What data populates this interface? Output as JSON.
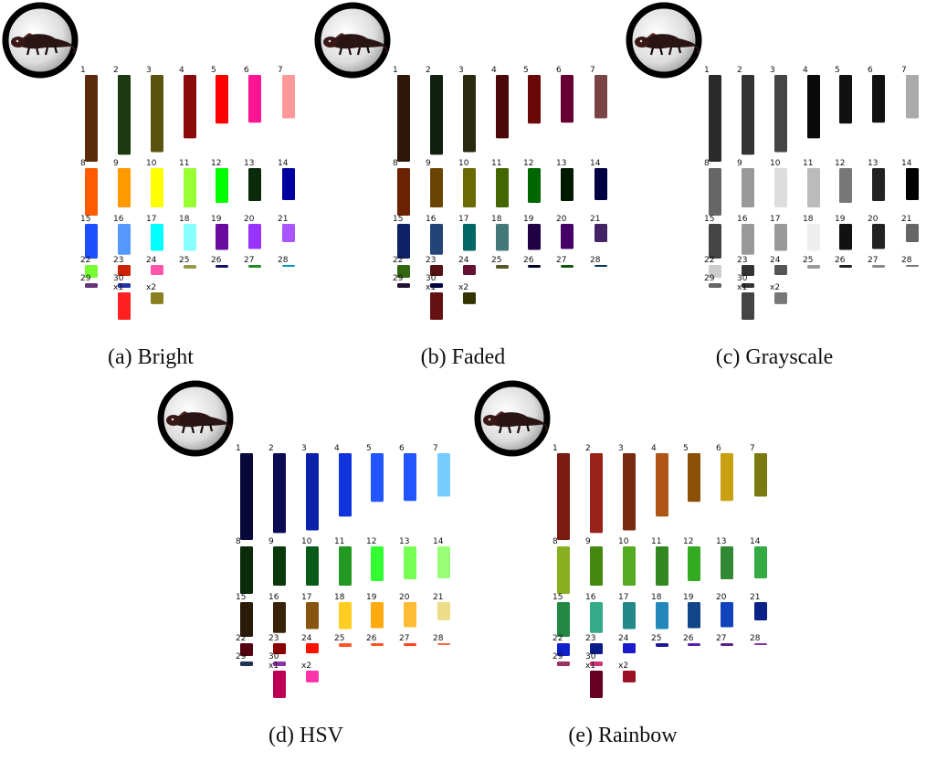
{
  "chart_data": [
    {
      "type": "bar",
      "caption": "(a) Bright",
      "categories": [
        "1",
        "2",
        "3",
        "4",
        "5",
        "6",
        "7",
        "8",
        "9",
        "10",
        "11",
        "12",
        "13",
        "14",
        "15",
        "16",
        "17",
        "18",
        "19",
        "20",
        "21",
        "22",
        "23",
        "24",
        "25",
        "26",
        "27",
        "28",
        "29",
        "30",
        "x1",
        "x2"
      ],
      "values": [
        1.0,
        0.92,
        0.89,
        0.73,
        0.56,
        0.55,
        0.5,
        0.52,
        0.43,
        0.43,
        0.43,
        0.38,
        0.36,
        0.35,
        0.36,
        0.32,
        0.28,
        0.28,
        0.27,
        0.26,
        0.19,
        0.14,
        0.12,
        0.11,
        0.04,
        0.03,
        0.03,
        0.02,
        0.02,
        0.02,
        0.28,
        0.12
      ],
      "colors": [
        "#5a2a0a",
        "#1c3a12",
        "#5b5410",
        "#8b0a0a",
        "#ff0000",
        "#ff1493",
        "#ff9999",
        "#ff5a00",
        "#ff9900",
        "#ffff00",
        "#99ff33",
        "#00ff00",
        "#0a2a0a",
        "#0000a0",
        "#1e50ff",
        "#5599ff",
        "#00ffff",
        "#88ffff",
        "#6a0aa0",
        "#9933ff",
        "#aa55ff",
        "#77ff33",
        "#cc2200",
        "#ff55aa",
        "#99994a",
        "#111166",
        "#228822",
        "#0099bb",
        "#663377",
        "#2233aa",
        "#ff2020",
        "#8a8020"
      ]
    },
    {
      "type": "bar",
      "caption": "(b) Faded",
      "categories": [
        "1",
        "2",
        "3",
        "4",
        "5",
        "6",
        "7",
        "8",
        "9",
        "10",
        "11",
        "12",
        "13",
        "14",
        "15",
        "16",
        "17",
        "18",
        "19",
        "20",
        "21",
        "22",
        "23",
        "24",
        "25",
        "26",
        "27",
        "28",
        "29",
        "30",
        "x1",
        "x2"
      ],
      "values": [
        1.0,
        0.92,
        0.89,
        0.73,
        0.56,
        0.55,
        0.5,
        0.52,
        0.43,
        0.43,
        0.43,
        0.38,
        0.36,
        0.35,
        0.36,
        0.32,
        0.28,
        0.28,
        0.27,
        0.26,
        0.19,
        0.14,
        0.12,
        0.11,
        0.04,
        0.03,
        0.03,
        0.02,
        0.02,
        0.02,
        0.28,
        0.12
      ],
      "colors": [
        "#2e1608",
        "#102010",
        "#2a2a0e",
        "#4a0808",
        "#6a0808",
        "#660033",
        "#7a4444",
        "#6a2200",
        "#6a4400",
        "#6a6a00",
        "#446600",
        "#006600",
        "#001a00",
        "#000044",
        "#102266",
        "#224477",
        "#006666",
        "#447777",
        "#220044",
        "#440066",
        "#442266",
        "#336611",
        "#551111",
        "#661133",
        "#555522",
        "#000022",
        "#115511",
        "#003355",
        "#221133",
        "#000044",
        "#661111",
        "#333300"
      ]
    },
    {
      "type": "bar",
      "caption": "(c) Grayscale",
      "categories": [
        "1",
        "2",
        "3",
        "4",
        "5",
        "6",
        "7",
        "8",
        "9",
        "10",
        "11",
        "12",
        "13",
        "14",
        "15",
        "16",
        "17",
        "18",
        "19",
        "20",
        "21",
        "22",
        "23",
        "24",
        "25",
        "26",
        "27",
        "28",
        "29",
        "30",
        "x1",
        "x2"
      ],
      "values": [
        1.0,
        0.92,
        0.89,
        0.73,
        0.56,
        0.55,
        0.5,
        0.52,
        0.43,
        0.43,
        0.43,
        0.38,
        0.36,
        0.35,
        0.36,
        0.32,
        0.28,
        0.28,
        0.27,
        0.26,
        0.19,
        0.14,
        0.12,
        0.11,
        0.04,
        0.03,
        0.03,
        0.02,
        0.02,
        0.02,
        0.28,
        0.12
      ],
      "colors": [
        "#2a2a2a",
        "#333333",
        "#444444",
        "#0a0a0a",
        "#111111",
        "#111111",
        "#aaaaaa",
        "#666666",
        "#999999",
        "#dddddd",
        "#bbbbbb",
        "#777777",
        "#222222",
        "#000000",
        "#444444",
        "#999999",
        "#999999",
        "#eeeeee",
        "#111111",
        "#222222",
        "#666666",
        "#cccccc",
        "#333333",
        "#555555",
        "#999999",
        "#222222",
        "#888888",
        "#777777",
        "#666666",
        "#333333",
        "#444444",
        "#777777"
      ]
    },
    {
      "type": "bar",
      "caption": "(d) HSV",
      "categories": [
        "1",
        "2",
        "3",
        "4",
        "5",
        "6",
        "7",
        "8",
        "9",
        "10",
        "11",
        "12",
        "13",
        "14",
        "15",
        "16",
        "17",
        "18",
        "19",
        "20",
        "21",
        "22",
        "23",
        "24",
        "25",
        "26",
        "27",
        "28",
        "29",
        "30",
        "x1",
        "x2"
      ],
      "values": [
        1.0,
        0.92,
        0.89,
        0.73,
        0.56,
        0.55,
        0.5,
        0.52,
        0.43,
        0.43,
        0.43,
        0.38,
        0.36,
        0.35,
        0.36,
        0.32,
        0.28,
        0.28,
        0.27,
        0.26,
        0.19,
        0.14,
        0.12,
        0.11,
        0.04,
        0.03,
        0.03,
        0.02,
        0.02,
        0.02,
        0.28,
        0.12
      ],
      "colors": [
        "#08083a",
        "#0a0a55",
        "#0a22aa",
        "#1133dd",
        "#2255ff",
        "#2255ff",
        "#77ccff",
        "#0a2a0a",
        "#0a3a0a",
        "#0a5a1a",
        "#229922",
        "#33ff33",
        "#77ff55",
        "#99ff77",
        "#2a1a08",
        "#3a2208",
        "#885511",
        "#ffcc22",
        "#ffaa11",
        "#ffbb33",
        "#eedd88",
        "#550011",
        "#880000",
        "#ff1100",
        "#ff5522",
        "#ff5522",
        "#ff4422",
        "#ff6644",
        "#223355",
        "#8833aa",
        "#bb0055",
        "#ff33aa"
      ]
    },
    {
      "type": "bar",
      "caption": "(e) Rainbow",
      "categories": [
        "1",
        "2",
        "3",
        "4",
        "5",
        "6",
        "7",
        "8",
        "9",
        "10",
        "11",
        "12",
        "13",
        "14",
        "15",
        "16",
        "17",
        "18",
        "19",
        "20",
        "21",
        "22",
        "23",
        "24",
        "25",
        "26",
        "27",
        "28",
        "29",
        "30",
        "x1",
        "x2"
      ],
      "values": [
        1.0,
        0.92,
        0.89,
        0.73,
        0.56,
        0.55,
        0.5,
        0.52,
        0.43,
        0.43,
        0.43,
        0.38,
        0.36,
        0.35,
        0.36,
        0.32,
        0.28,
        0.28,
        0.27,
        0.26,
        0.19,
        0.14,
        0.12,
        0.11,
        0.04,
        0.03,
        0.03,
        0.02,
        0.02,
        0.02,
        0.28,
        0.12
      ],
      "colors": [
        "#7a1a10",
        "#992218",
        "#7a2a10",
        "#b05518",
        "#8a5008",
        "#c8a010",
        "#7a7a10",
        "#88b020",
        "#448810",
        "#55aa22",
        "#338822",
        "#33aa22",
        "#338833",
        "#33aa44",
        "#228844",
        "#33aa88",
        "#228888",
        "#2288bb",
        "#114488",
        "#1144bb",
        "#0a2288",
        "#1122cc",
        "#0a1a88",
        "#1a1acc",
        "#1a1a99",
        "#5522aa",
        "#552288",
        "#8833aa",
        "#993366",
        "#cc3377",
        "#660022",
        "#991122"
      ]
    }
  ]
}
